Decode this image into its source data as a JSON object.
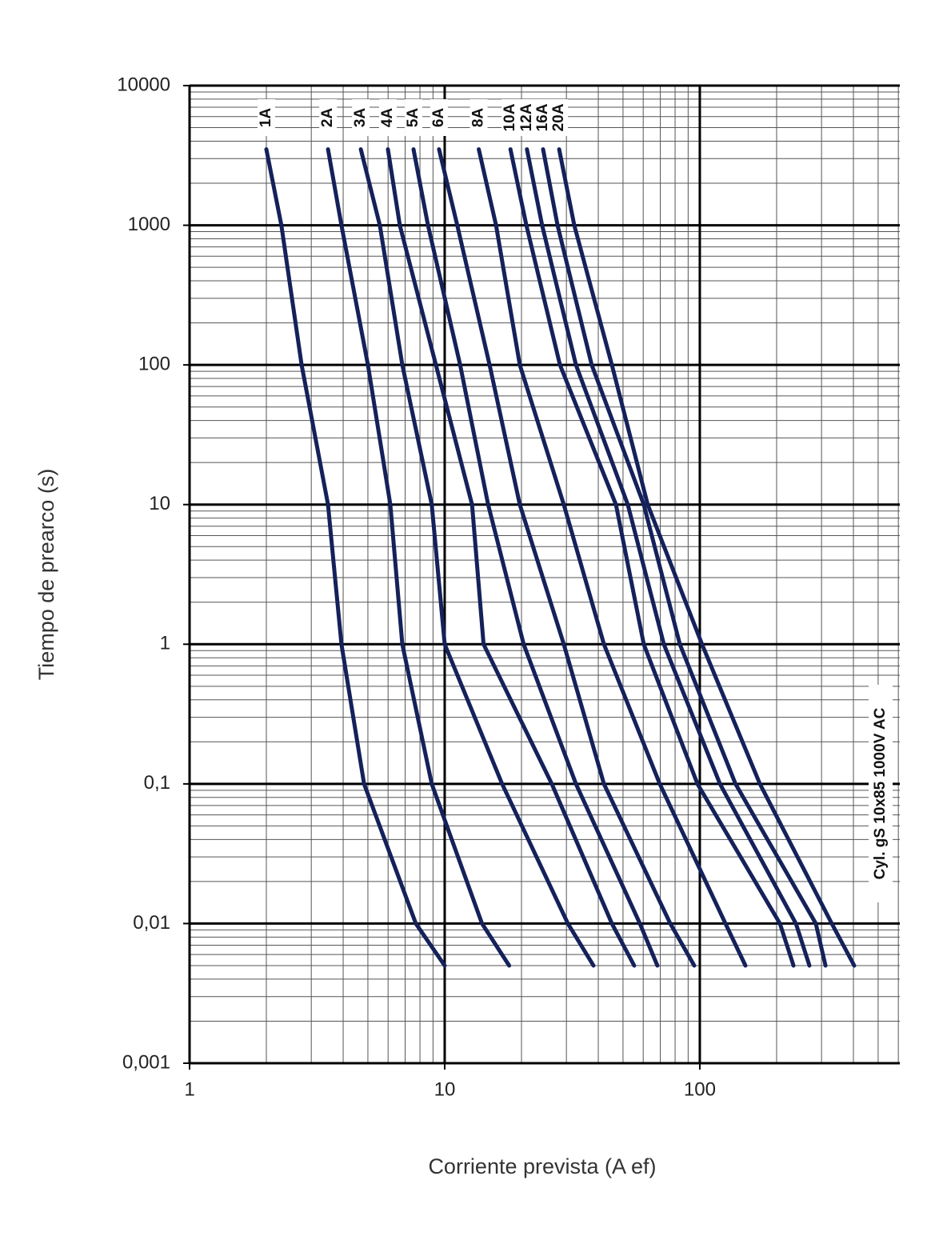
{
  "chart_data": {
    "type": "line",
    "x_label": "Corriente prevista (A ef)",
    "y_label": "Tiempo de prearco (s)",
    "annotation": "Cyl. gS 10x85 1000V AC",
    "x_log": true,
    "y_log": true,
    "grid": true,
    "minor_grid": true,
    "xlim": [
      1,
      608
    ],
    "ylim": [
      0.001,
      10000
    ],
    "xticks": [
      1,
      10,
      100
    ],
    "yticks": [
      {
        "value": 0.001,
        "label": "0,001"
      },
      {
        "value": 0.01,
        "label": "0,01"
      },
      {
        "value": 0.1,
        "label": "0,1"
      },
      1,
      10,
      100,
      1000,
      10000
    ],
    "series": [
      {
        "name": "1A",
        "color": "#14215a",
        "x": [
          2.0,
          2.29,
          2.75,
          3.49,
          3.94,
          4.83,
          7.71,
          10
        ],
        "values": [
          3500,
          1000,
          100,
          10,
          1,
          0.1,
          0.01,
          0.005
        ]
      },
      {
        "name": "2A",
        "color": "#14215a",
        "x": [
          3.49,
          3.94,
          5.0,
          6.12,
          6.82,
          8.9,
          14.0,
          17.9
        ],
        "values": [
          3500,
          1000,
          100,
          10,
          1,
          0.1,
          0.01,
          0.005
        ]
      },
      {
        "name": "3A",
        "color": "#14215a",
        "x": [
          4.69,
          5.57,
          6.82,
          8.9,
          10,
          16.8,
          30.4,
          38.3
        ],
        "values": [
          3500,
          1000,
          100,
          10,
          1,
          0.1,
          0.01,
          0.005
        ]
      },
      {
        "name": "4A",
        "color": "#14215a",
        "x": [
          5.99,
          6.67,
          9.24,
          12.8,
          14.2,
          26.3,
          45.2,
          55.3
        ],
        "values": [
          3500,
          1000,
          100,
          10,
          1,
          0.1,
          0.01,
          0.005
        ]
      },
      {
        "name": "5A",
        "color": "#14215a",
        "x": [
          7.55,
          8.6,
          11.5,
          14.8,
          20.4,
          32.7,
          58.2,
          68.2
        ],
        "values": [
          3500,
          1000,
          100,
          10,
          1,
          0.1,
          0.01,
          0.005
        ]
      },
      {
        "name": "6A",
        "color": "#14215a",
        "x": [
          9.5,
          11.2,
          15.0,
          19.7,
          29.3,
          42.1,
          76.6,
          95.1
        ],
        "values": [
          3500,
          1000,
          100,
          10,
          1,
          0.1,
          0.01,
          0.005
        ]
      },
      {
        "name": "8A",
        "color": "#14215a",
        "x": [
          13.6,
          15.9,
          19.7,
          29.3,
          42.1,
          69.7,
          126,
          151
        ],
        "values": [
          3500,
          1000,
          100,
          10,
          1,
          0.1,
          0.01,
          0.005
        ]
      },
      {
        "name": "10A",
        "color": "#14215a",
        "x": [
          18.1,
          20.9,
          28.3,
          46.9,
          60.3,
          97.9,
          206,
          233
        ],
        "values": [
          3500,
          1000,
          100,
          10,
          1,
          0.1,
          0.01,
          0.005
        ]
      },
      {
        "name": "12A",
        "color": "#14215a",
        "x": [
          21.0,
          24.1,
          32.7,
          52.2,
          72.3,
          120,
          238,
          269
        ],
        "values": [
          3500,
          1000,
          100,
          10,
          1,
          0.1,
          0.01,
          0.005
        ]
      },
      {
        "name": "16A",
        "color": "#14215a",
        "x": [
          24.3,
          27.7,
          37.7,
          60.3,
          83.5,
          138,
          285,
          311
        ],
        "values": [
          3500,
          1000,
          100,
          10,
          1,
          0.1,
          0.01,
          0.005
        ]
      },
      {
        "name": "20A",
        "color": "#14215a",
        "x": [
          28.1,
          32.2,
          45.2,
          62.5,
          102,
          172,
          329,
          403
        ],
        "values": [
          3500,
          1000,
          100,
          10,
          1,
          0.1,
          0.01,
          0.005
        ]
      }
    ]
  }
}
